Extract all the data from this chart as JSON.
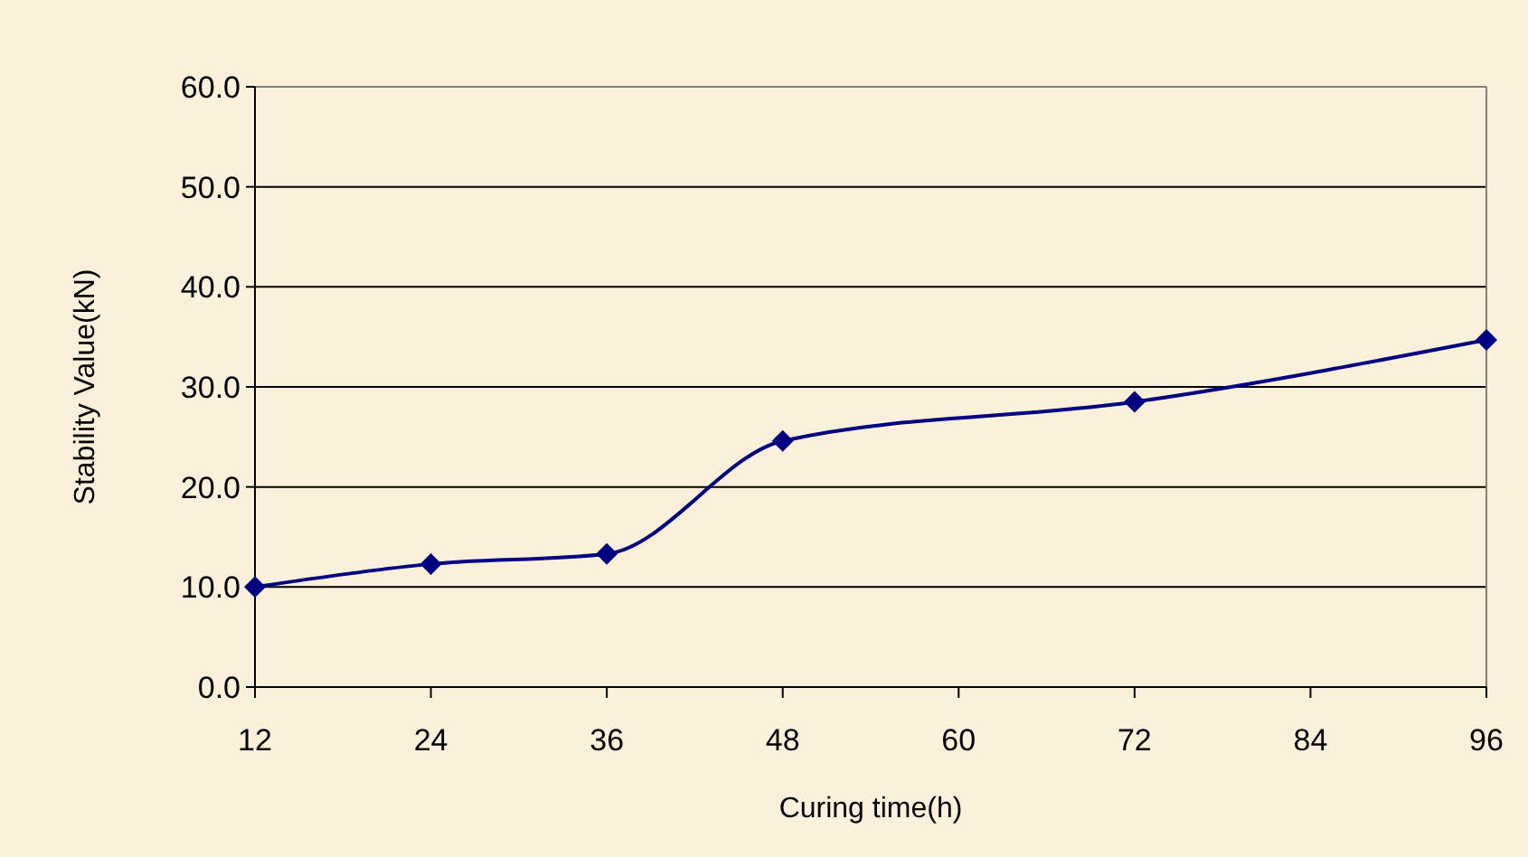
{
  "chart_data": {
    "type": "line",
    "xlabel": "Curing time(h)",
    "ylabel": "Stability Value(kN)",
    "x": [
      12,
      24,
      36,
      48,
      72,
      96
    ],
    "series": [
      {
        "color": "#000080",
        "values": [
          10.0,
          12.3,
          13.3,
          24.6,
          28.5,
          34.7
        ]
      }
    ],
    "xlim": [
      12,
      96
    ],
    "xticks": [
      12,
      24,
      36,
      48,
      60,
      72,
      84,
      96
    ],
    "ylim": [
      0,
      60
    ],
    "yticks": [
      {
        "value": 0,
        "label": "0.0"
      },
      {
        "value": 10,
        "label": "10.0"
      },
      {
        "value": 20,
        "label": "20.0"
      },
      {
        "value": 30,
        "label": "30.0"
      },
      {
        "value": 40,
        "label": "40.0"
      },
      {
        "value": 50,
        "label": "50.0"
      },
      {
        "value": 60,
        "label": "60.0"
      }
    ],
    "grid": "y",
    "marker": "diamond",
    "line_style": "solid"
  }
}
